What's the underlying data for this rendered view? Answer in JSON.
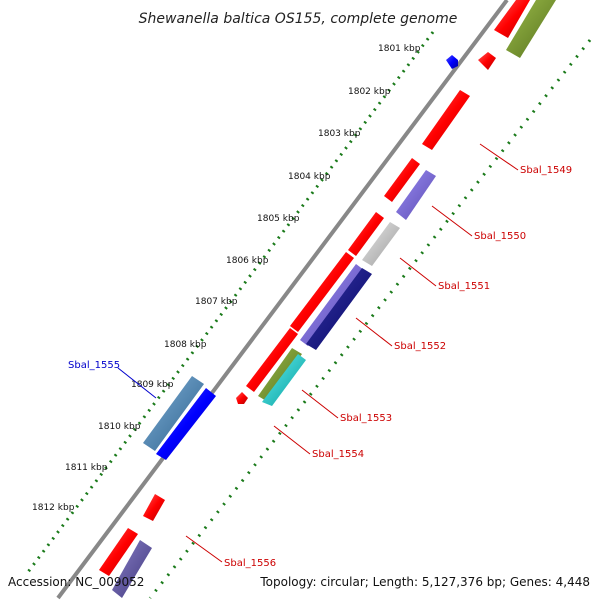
{
  "title": "Shewanella baltica OS155, complete genome",
  "footer": {
    "accession": "Accession: NC_009052",
    "summary": "Topology: circular; Length: 5,127,376 bp; Genes: 4,448"
  },
  "kbp_ticks": [
    "1801 kbp",
    "1802 kbp",
    "1803 kbp",
    "1804 kbp",
    "1805 kbp",
    "1806 kbp",
    "1807 kbp",
    "1808 kbp",
    "1809 kbp",
    "1810 kbp",
    "1811 kbp",
    "1812 kbp"
  ],
  "gene_labels": [
    {
      "id": "Sbal_1549",
      "text": "Sbal_1549",
      "color": "#cc0000"
    },
    {
      "id": "Sbal_1550",
      "text": "Sbal_1550",
      "color": "#cc0000"
    },
    {
      "id": "Sbal_1551",
      "text": "Sbal_1551",
      "color": "#cc0000"
    },
    {
      "id": "Sbal_1552",
      "text": "Sbal_1552",
      "color": "#cc0000"
    },
    {
      "id": "Sbal_1553",
      "text": "Sbal_1553",
      "color": "#cc0000"
    },
    {
      "id": "Sbal_1554",
      "text": "Sbal_1554",
      "color": "#cc0000"
    },
    {
      "id": "Sbal_1555",
      "text": "Sbal_1555",
      "color": "#0000cc"
    },
    {
      "id": "Sbal_1556",
      "text": "Sbal_1556",
      "color": "#cc0000"
    }
  ],
  "colors": {
    "backbone": "#888888",
    "tick_dots": "#1a7a1a",
    "red_gene": "#ff0000",
    "blue_gene": "#0000ff",
    "olive_gene": "#6b8e23",
    "purple_gene": "#7b68ee",
    "navy_gene": "#000080",
    "gray_gene": "#c0c0c0",
    "cyan_gene": "#00cccc",
    "steel_gene": "#4682b4"
  }
}
